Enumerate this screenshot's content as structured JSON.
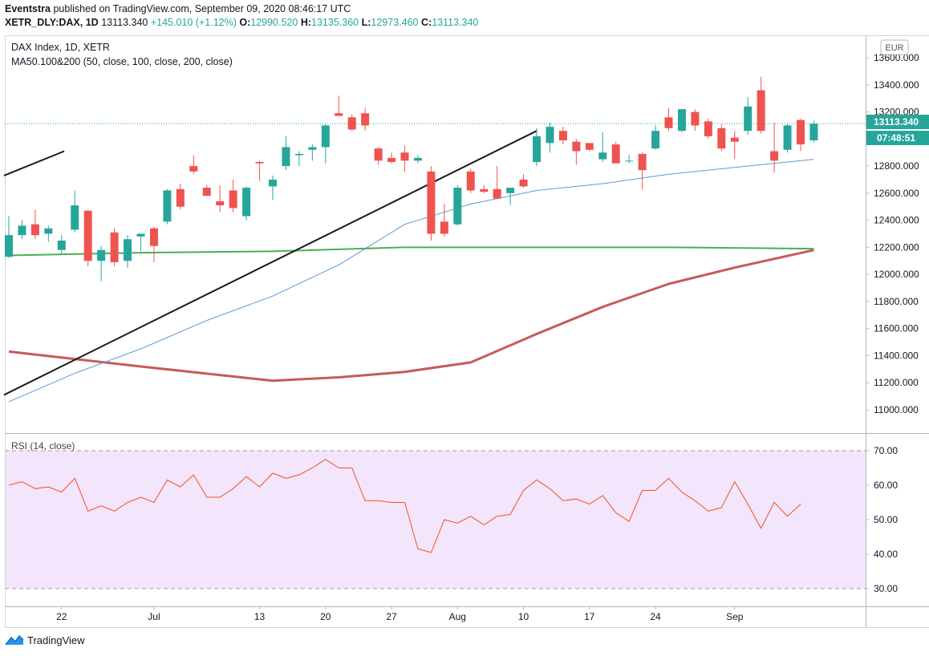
{
  "header": {
    "publisher": "Eventstra",
    "published_text": "published on TradingView.com, September 09, 2020 08:46:17 UTC",
    "symbol": "XETR_DLY:DAX, 1D",
    "last": "13113.340",
    "change": "+145.010 (+1.12%)",
    "o_label": "O:",
    "o": "12990.520",
    "h_label": "H:",
    "h": "13135.360",
    "l_label": "L:",
    "l": "12973.460",
    "c_label": "C:",
    "c": "13113.340"
  },
  "legend": {
    "title": "DAX Index, 1D, XETR",
    "ma": "MA50.100&200 (50, close, 100, close, 200, close)",
    "rsi": "RSI (14, close)"
  },
  "currency_badge": "EUR",
  "price_badge": "13113.340",
  "time_badge": "07:48:51",
  "footer": {
    "brand": "TradingView"
  },
  "colors": {
    "up": "#26a69a",
    "down": "#ef5350",
    "ma50": "#5b9bd5",
    "ma100": "#4caf50",
    "ma200": "#c75b57",
    "rsi_line": "#f4511e",
    "rsi_band": "#f3e5fb",
    "trendline": "#1a1a1a"
  },
  "chart_data": [
    {
      "type": "candlestick",
      "title": "DAX Index, 1D, XETR",
      "y_ticks": [
        11000,
        11200,
        11400,
        11600,
        11800,
        12000,
        12200,
        12400,
        12600,
        12800,
        13000,
        13200,
        13400,
        13600
      ],
      "y_tick_labels": [
        "11000.000",
        "11200.000",
        "11400.000",
        "11600.000",
        "11800.000",
        "12000.000",
        "12200.000",
        "12400.000",
        "12600.000",
        "12800.000",
        "13000.000",
        "13200.000",
        "13400.000",
        "13600.000"
      ],
      "x_tick_labels": [
        "22",
        "Jul",
        "13",
        "20",
        "27",
        "Aug",
        "10",
        "17",
        "24",
        "Sep"
      ],
      "x_tick_index": [
        4,
        11,
        19,
        24,
        29,
        34,
        39,
        44,
        49,
        55
      ],
      "candles": [
        {
          "o": 12130,
          "h": 12430,
          "l": 12120,
          "c": 12290
        },
        {
          "o": 12290,
          "h": 12400,
          "l": 12260,
          "c": 12360
        },
        {
          "o": 12370,
          "h": 12480,
          "l": 12260,
          "c": 12290
        },
        {
          "o": 12300,
          "h": 12360,
          "l": 12240,
          "c": 12340
        },
        {
          "o": 12180,
          "h": 12290,
          "l": 12150,
          "c": 12250
        },
        {
          "o": 12330,
          "h": 12620,
          "l": 12310,
          "c": 12510
        },
        {
          "o": 12470,
          "h": 12480,
          "l": 12060,
          "c": 12100
        },
        {
          "o": 12100,
          "h": 12210,
          "l": 11950,
          "c": 12180
        },
        {
          "o": 12310,
          "h": 12340,
          "l": 12060,
          "c": 12090
        },
        {
          "o": 12100,
          "h": 12290,
          "l": 12050,
          "c": 12260
        },
        {
          "o": 12280,
          "h": 12300,
          "l": 12170,
          "c": 12300
        },
        {
          "o": 12340,
          "h": 12350,
          "l": 12090,
          "c": 12210
        },
        {
          "o": 12390,
          "h": 12630,
          "l": 12370,
          "c": 12620
        },
        {
          "o": 12630,
          "h": 12670,
          "l": 12480,
          "c": 12500
        },
        {
          "o": 12800,
          "h": 12880,
          "l": 12740,
          "c": 12760
        },
        {
          "o": 12640,
          "h": 12660,
          "l": 12580,
          "c": 12580
        },
        {
          "o": 12540,
          "h": 12660,
          "l": 12460,
          "c": 12510
        },
        {
          "o": 12620,
          "h": 12700,
          "l": 12460,
          "c": 12490
        },
        {
          "o": 12430,
          "h": 12650,
          "l": 12400,
          "c": 12640
        },
        {
          "o": 12830,
          "h": 12840,
          "l": 12690,
          "c": 12820
        },
        {
          "o": 12650,
          "h": 12730,
          "l": 12550,
          "c": 12700
        },
        {
          "o": 12800,
          "h": 13020,
          "l": 12770,
          "c": 12940
        },
        {
          "o": 12880,
          "h": 12910,
          "l": 12800,
          "c": 12890
        },
        {
          "o": 12920,
          "h": 12960,
          "l": 12840,
          "c": 12940
        },
        {
          "o": 12940,
          "h": 13110,
          "l": 12820,
          "c": 13100
        },
        {
          "o": 13190,
          "h": 13320,
          "l": 13170,
          "c": 13170
        },
        {
          "o": 13160,
          "h": 13180,
          "l": 13060,
          "c": 13070
        },
        {
          "o": 13190,
          "h": 13230,
          "l": 13060,
          "c": 13100
        },
        {
          "o": 12930,
          "h": 12940,
          "l": 12810,
          "c": 12840
        },
        {
          "o": 12860,
          "h": 12900,
          "l": 12820,
          "c": 12830
        },
        {
          "o": 12900,
          "h": 12950,
          "l": 12760,
          "c": 12840
        },
        {
          "o": 12840,
          "h": 12880,
          "l": 12820,
          "c": 12860
        },
        {
          "o": 12760,
          "h": 12800,
          "l": 12250,
          "c": 12300
        },
        {
          "o": 12390,
          "h": 12520,
          "l": 12280,
          "c": 12300
        },
        {
          "o": 12370,
          "h": 12660,
          "l": 12360,
          "c": 12640
        },
        {
          "o": 12760,
          "h": 12780,
          "l": 12600,
          "c": 12620
        },
        {
          "o": 12630,
          "h": 12660,
          "l": 12600,
          "c": 12610
        },
        {
          "o": 12630,
          "h": 12800,
          "l": 12560,
          "c": 12560
        },
        {
          "o": 12600,
          "h": 12640,
          "l": 12510,
          "c": 12640
        },
        {
          "o": 12700,
          "h": 12740,
          "l": 12640,
          "c": 12650
        },
        {
          "o": 12830,
          "h": 13080,
          "l": 12800,
          "c": 13020
        },
        {
          "o": 12970,
          "h": 13120,
          "l": 12900,
          "c": 13090
        },
        {
          "o": 13060,
          "h": 13090,
          "l": 12960,
          "c": 12990
        },
        {
          "o": 12980,
          "h": 13000,
          "l": 12810,
          "c": 12910
        },
        {
          "o": 12970,
          "h": 12970,
          "l": 12910,
          "c": 12920
        },
        {
          "o": 12850,
          "h": 13050,
          "l": 12830,
          "c": 12900
        },
        {
          "o": 12960,
          "h": 12980,
          "l": 12830,
          "c": 12820
        },
        {
          "o": 12840,
          "h": 12880,
          "l": 12820,
          "c": 12840
        },
        {
          "o": 12890,
          "h": 12900,
          "l": 12630,
          "c": 12770
        },
        {
          "o": 12930,
          "h": 13100,
          "l": 12920,
          "c": 13060
        },
        {
          "o": 13160,
          "h": 13230,
          "l": 13060,
          "c": 13080
        },
        {
          "o": 13060,
          "h": 13220,
          "l": 13050,
          "c": 13220
        },
        {
          "o": 13200,
          "h": 13220,
          "l": 13060,
          "c": 13100
        },
        {
          "o": 13130,
          "h": 13150,
          "l": 13000,
          "c": 13020
        },
        {
          "o": 13080,
          "h": 13110,
          "l": 12910,
          "c": 12930
        },
        {
          "o": 13010,
          "h": 13060,
          "l": 12850,
          "c": 12980
        },
        {
          "o": 13060,
          "h": 13310,
          "l": 13030,
          "c": 13240
        },
        {
          "o": 13360,
          "h": 13460,
          "l": 13040,
          "c": 13060
        },
        {
          "o": 12910,
          "h": 13120,
          "l": 12750,
          "c": 12840
        },
        {
          "o": 12920,
          "h": 13110,
          "l": 12900,
          "c": 13100
        },
        {
          "o": 13140,
          "h": 13150,
          "l": 12910,
          "c": 12960
        },
        {
          "o": 12990,
          "h": 13135,
          "l": 12973,
          "c": 13113
        }
      ],
      "series": [
        {
          "name": "MA50",
          "x": [
            0,
            5,
            10,
            15,
            20,
            25,
            30,
            35,
            40,
            45,
            50,
            55,
            61
          ],
          "y": [
            11060,
            11270,
            11450,
            11660,
            11840,
            12070,
            12370,
            12520,
            12620,
            12670,
            12740,
            12790,
            12850
          ]
        },
        {
          "name": "MA100",
          "x": [
            0,
            10,
            20,
            30,
            40,
            50,
            61
          ],
          "y": [
            12140,
            12160,
            12170,
            12200,
            12200,
            12200,
            12190
          ]
        },
        {
          "name": "MA200",
          "x": [
            0,
            10,
            20,
            25,
            30,
            35,
            40,
            45,
            50,
            55,
            61
          ],
          "y": [
            11430,
            11320,
            11215,
            11240,
            11280,
            11350,
            11560,
            11760,
            11930,
            12050,
            12180
          ]
        }
      ],
      "trendlines": [
        {
          "x": [
            0,
            4.2
          ],
          "y": [
            12730,
            12910
          ]
        },
        {
          "x": [
            0,
            40
          ],
          "y": [
            11110,
            13060
          ]
        }
      ],
      "last_price": 13113.34
    },
    {
      "type": "line",
      "title": "RSI (14, close)",
      "y_ticks": [
        30,
        40,
        50,
        60,
        70
      ],
      "y_tick_labels": [
        "30.00",
        "40.00",
        "50.00",
        "60.00",
        "70.00"
      ],
      "band": [
        30,
        70
      ],
      "values": [
        60,
        61,
        59,
        59.5,
        58,
        62,
        52.5,
        54,
        52.5,
        55,
        56.5,
        55,
        61.5,
        59.5,
        63,
        56.5,
        56.5,
        59,
        62.5,
        59.5,
        63.5,
        62,
        63,
        65,
        67.5,
        65,
        65,
        55.5,
        55.5,
        55,
        55,
        41.5,
        40.5,
        50,
        49,
        51,
        48.5,
        51,
        51.5,
        58.5,
        61.5,
        59,
        55.5,
        56,
        54.5,
        57,
        52,
        49.5,
        58.5,
        58.5,
        62,
        58,
        55.5,
        52.5,
        53.5,
        61,
        54.5,
        47.5,
        55,
        51,
        54.5
      ]
    }
  ]
}
